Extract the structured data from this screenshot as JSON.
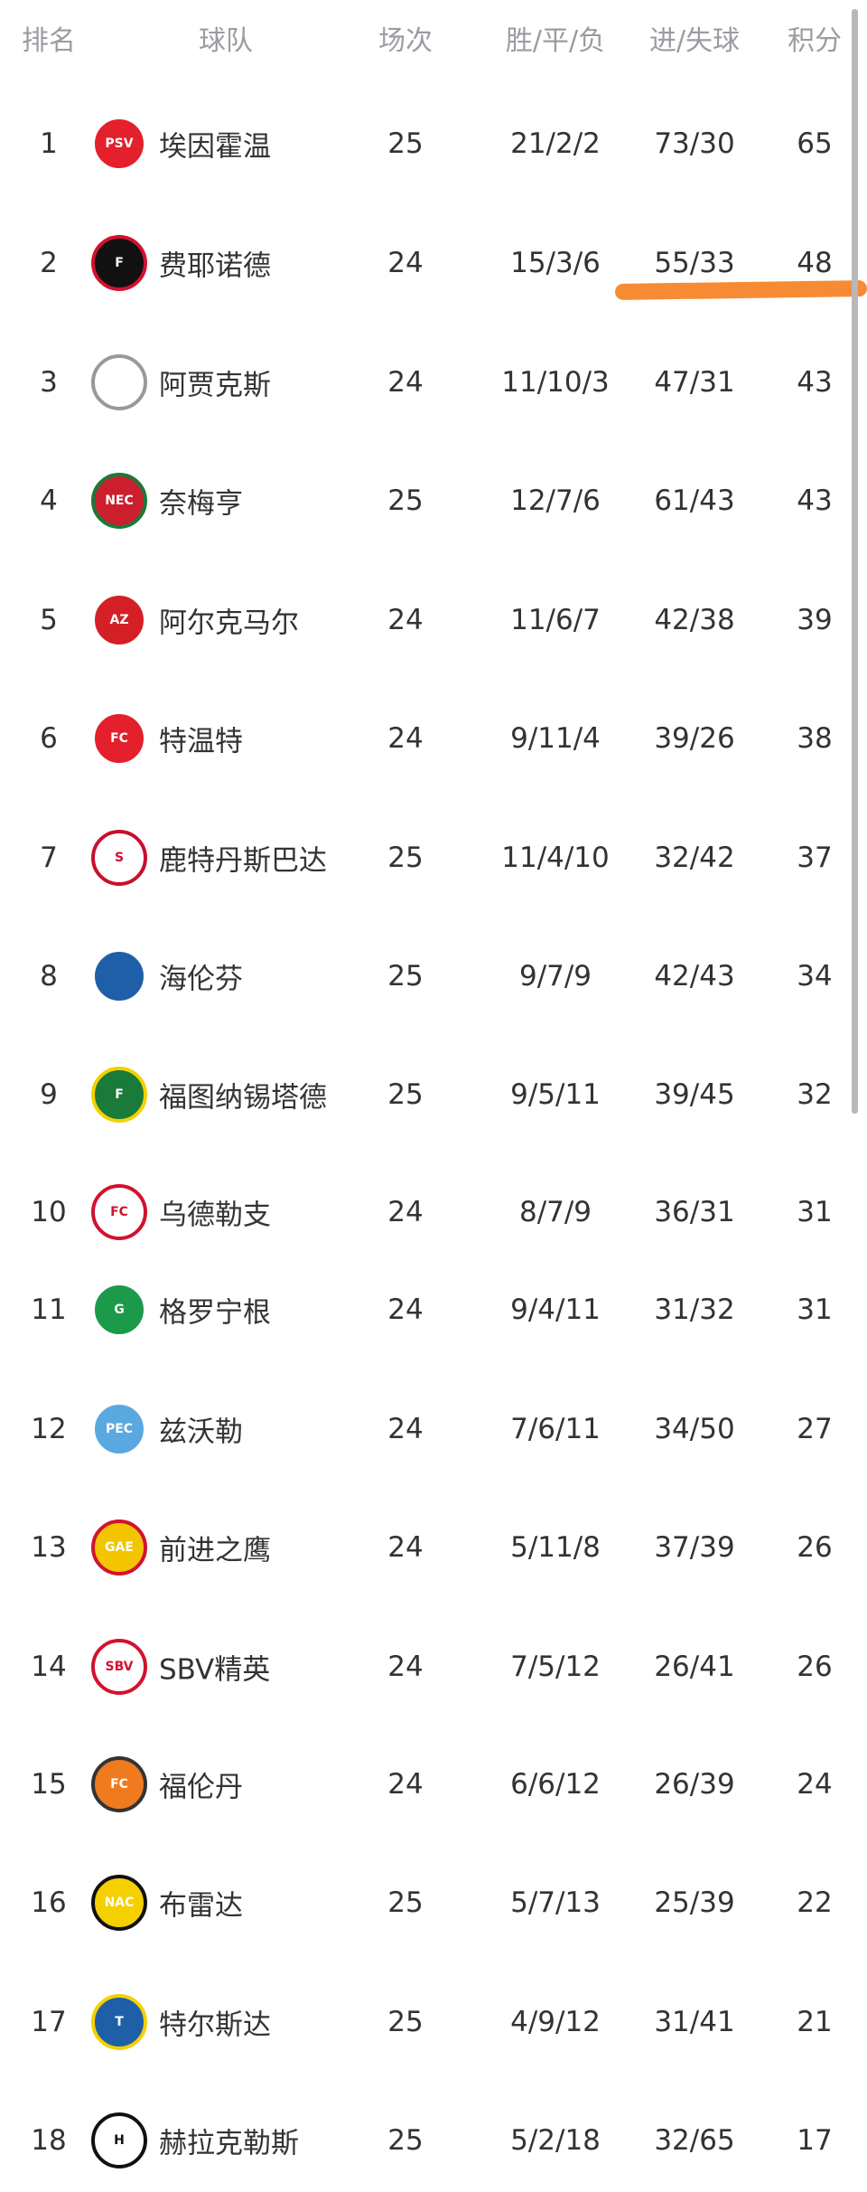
{
  "header": {
    "rank": "排名",
    "team": "球队",
    "played": "场次",
    "wdl": "胜/平/负",
    "goals": "进/失球",
    "points": "积分"
  },
  "colors": {
    "header_text": "#9a9ca2",
    "highlight_mark": "#f78b34",
    "scrollbar": "#b8b8bc"
  },
  "rows": [
    {
      "rank": "1",
      "team": "埃因霍温",
      "played": "25",
      "wdl": "21/2/2",
      "goals": "73/30",
      "points": "65",
      "logo": "psv-logo",
      "logo_text": "PSV",
      "c1": "#e3202b",
      "c2": "#ffffff"
    },
    {
      "rank": "2",
      "team": "费耶诺德",
      "played": "24",
      "wdl": "15/3/6",
      "goals": "55/33",
      "points": "48",
      "logo": "feyenoord-logo",
      "logo_text": "F",
      "c1": "#111111",
      "c2": "#d2122e"
    },
    {
      "rank": "3",
      "team": "阿贾克斯",
      "played": "24",
      "wdl": "11/10/3",
      "goals": "47/31",
      "points": "43",
      "logo": "ajax-logo",
      "logo_text": "",
      "c1": "#ffffff",
      "c2": "#999999"
    },
    {
      "rank": "4",
      "team": "奈梅亨",
      "played": "25",
      "wdl": "12/7/6",
      "goals": "61/43",
      "points": "43",
      "logo": "nec-logo",
      "logo_text": "NEC",
      "c1": "#cc1f2d",
      "c2": "#1a7a3a"
    },
    {
      "rank": "5",
      "team": "阿尔克马尔",
      "played": "24",
      "wdl": "11/6/7",
      "goals": "42/38",
      "points": "39",
      "logo": "az-logo",
      "logo_text": "AZ",
      "c1": "#d51f26",
      "c2": "#ffffff"
    },
    {
      "rank": "6",
      "team": "特温特",
      "played": "24",
      "wdl": "9/11/4",
      "goals": "39/26",
      "points": "38",
      "logo": "twente-logo",
      "logo_text": "FC",
      "c1": "#e3202b",
      "c2": "#ffffff"
    },
    {
      "rank": "7",
      "team": "鹿特丹斯巴达",
      "played": "25",
      "wdl": "11/4/10",
      "goals": "32/42",
      "points": "37",
      "logo": "sparta-logo",
      "logo_text": "S",
      "c1": "#ffffff",
      "c2": "#c8102e"
    },
    {
      "rank": "8",
      "team": "海伦芬",
      "played": "25",
      "wdl": "9/7/9",
      "goals": "42/43",
      "points": "34",
      "logo": "heerenveen-logo",
      "logo_text": "",
      "c1": "#1f5fa8",
      "c2": "#ffffff"
    },
    {
      "rank": "9",
      "team": "福图纳锡塔德",
      "played": "25",
      "wdl": "9/5/11",
      "goals": "39/45",
      "points": "32",
      "logo": "fortuna-logo",
      "logo_text": "F",
      "c1": "#1a7a3a",
      "c2": "#f5d000"
    },
    {
      "rank": "10",
      "team": "乌德勒支",
      "played": "24",
      "wdl": "8/7/9",
      "goals": "36/31",
      "points": "31",
      "logo": "utrecht-logo",
      "logo_text": "FC",
      "c1": "#ffffff",
      "c2": "#d2122e"
    },
    {
      "rank": "11",
      "team": "格罗宁根",
      "played": "24",
      "wdl": "9/4/11",
      "goals": "31/32",
      "points": "31",
      "logo": "groningen-logo",
      "logo_text": "G",
      "c1": "#1a9a4a",
      "c2": "#ffffff"
    },
    {
      "rank": "12",
      "team": "兹沃勒",
      "played": "24",
      "wdl": "7/6/11",
      "goals": "34/50",
      "points": "27",
      "logo": "zwolle-logo",
      "logo_text": "PEC",
      "c1": "#5aa8e0",
      "c2": "#ffffff"
    },
    {
      "rank": "13",
      "team": "前进之鹰",
      "played": "24",
      "wdl": "5/11/8",
      "goals": "37/39",
      "points": "26",
      "logo": "ga-eagles-logo",
      "logo_text": "GAE",
      "c1": "#f2c500",
      "c2": "#d2122e"
    },
    {
      "rank": "14",
      "team": "SBV精英",
      "played": "24",
      "wdl": "7/5/12",
      "goals": "26/41",
      "points": "26",
      "logo": "excelsior-logo",
      "logo_text": "SBV",
      "c1": "#ffffff",
      "c2": "#d2122e"
    },
    {
      "rank": "15",
      "team": "福伦丹",
      "played": "24",
      "wdl": "6/6/12",
      "goals": "26/39",
      "points": "24",
      "logo": "volendam-logo",
      "logo_text": "FC",
      "c1": "#f07a1e",
      "c2": "#333333"
    },
    {
      "rank": "16",
      "team": "布雷达",
      "played": "25",
      "wdl": "5/7/13",
      "goals": "25/39",
      "points": "22",
      "logo": "nac-logo",
      "logo_text": "NAC",
      "c1": "#f5d000",
      "c2": "#111111"
    },
    {
      "rank": "17",
      "team": "特尔斯达",
      "played": "25",
      "wdl": "4/9/12",
      "goals": "31/41",
      "points": "21",
      "logo": "telstar-logo",
      "logo_text": "T",
      "c1": "#1f5fa8",
      "c2": "#f5d000"
    },
    {
      "rank": "18",
      "team": "赫拉克勒斯",
      "played": "25",
      "wdl": "5/2/18",
      "goals": "32/65",
      "points": "17",
      "logo": "heracles-logo",
      "logo_text": "H",
      "c1": "#ffffff",
      "c2": "#111111"
    }
  ]
}
